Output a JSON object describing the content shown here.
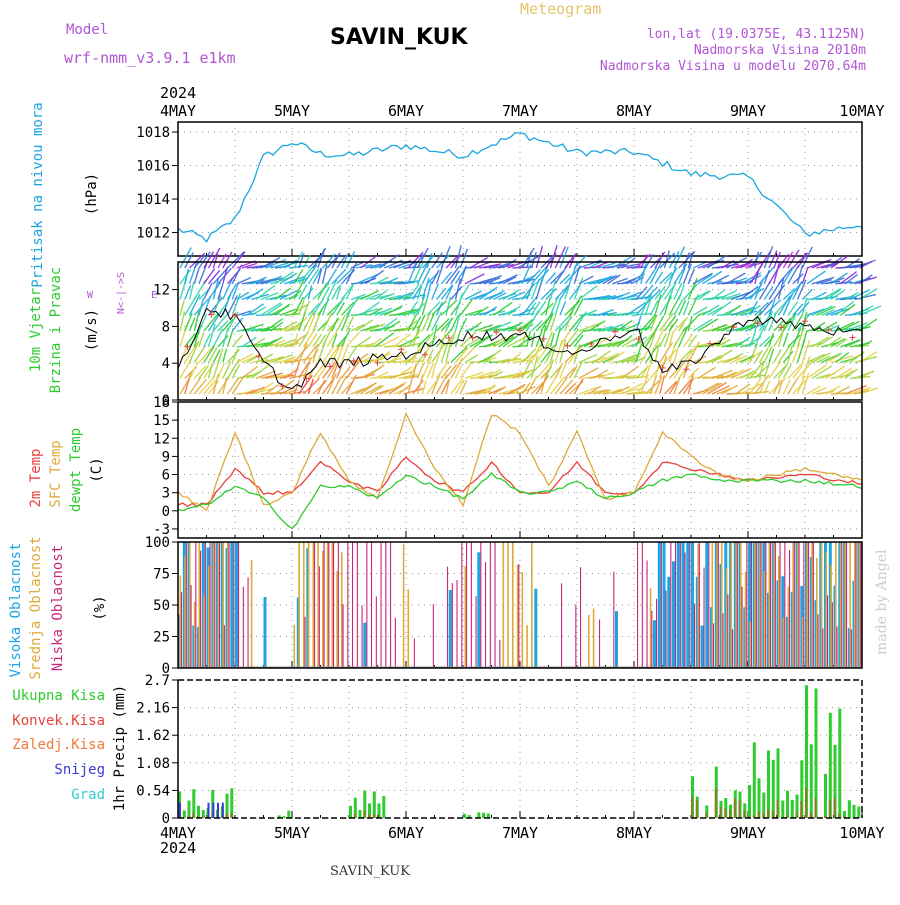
{
  "header": {
    "model_label": "Model",
    "model_name": "wrf-nmm_v3.9.1  e1km",
    "station_title": "SAVIN_KUK",
    "meteogram_label": "Meteogram",
    "lonlat": "lon,lat (19.0375E, 43.1125N)",
    "elevation": "Nadmorska Visina 2010m",
    "model_elevation": "Nadmorska Visina u modelu 2070.64m",
    "year_top": "2024"
  },
  "footer": {
    "year_bottom": "2024",
    "station_bottom": "SAVIN_KUK",
    "credit": "made by Angel"
  },
  "axis": {
    "dates": [
      "4MAY",
      "5MAY",
      "6MAY",
      "7MAY",
      "8MAY",
      "9MAY",
      "10MAY"
    ]
  },
  "colors": {
    "pressure": "#1aa6e0",
    "temp2m": "#e8413b",
    "sfc_temp": "#e0a93a",
    "dewpt": "#2ecc2e",
    "cloud_high": "#1aa6e0",
    "cloud_mid": "#e0a93a",
    "cloud_low": "#c8287a",
    "precip_total": "#2ecc2e",
    "precip_conv": "#e8413b",
    "precip_frz": "#f07b3a",
    "precip_snow": "#3a3ad8",
    "precip_grad": "#33cccc",
    "label_purple": "#b155d6",
    "label_gold": "#e7c36a"
  },
  "panels": {
    "pressure": {
      "label_main": "Pritisak na nivou mora",
      "unit": "(hPa)"
    },
    "wind": {
      "label_main": "10m Vjetar",
      "label_sub": "Brzina i Pravac",
      "unit": "(m/s)",
      "rose_ns": "N<-|->S",
      "rose_w": "W",
      "rose_e": "E"
    },
    "temp": {
      "label_1": "2m Temp",
      "label_2": "SFC Temp",
      "label_3": "dewpt Temp",
      "unit": "(C)"
    },
    "cloud": {
      "label_1": "Visoka Oblacnost",
      "label_2": "Srednja Oblacnost",
      "label_3": "Niska Oblacnost",
      "unit": "(%)"
    },
    "precip": {
      "label_1": "Ukupna Kisa",
      "label_2": "Konvek.Kisa",
      "label_3": "Zaledj.Kisa",
      "label_4": "Snijeg",
      "label_5": "Grad",
      "unit": "1hr Precip (mm)"
    }
  },
  "chart_data": [
    {
      "type": "line",
      "name": "pressure",
      "x_range": [
        "2024-05-04 00",
        "2024-05-10 00"
      ],
      "ylim": [
        1010.6,
        1018.6
      ],
      "yticks": [
        "1012",
        "1014",
        "1016",
        "1018"
      ],
      "grid": true,
      "x_hours": [
        0,
        6,
        12,
        18,
        24,
        30,
        36,
        48,
        60,
        72,
        84,
        96,
        108,
        120,
        132,
        144
      ],
      "values": [
        1012.2,
        1011.6,
        1012.8,
        1016.5,
        1017.4,
        1016.7,
        1016.6,
        1017.2,
        1016.6,
        1017.9,
        1016.8,
        1016.8,
        1015.5,
        1015.3,
        1011.9,
        1012.5
      ]
    },
    {
      "type": "line",
      "name": "wind_speed",
      "ylim": [
        0,
        15
      ],
      "yticks": [
        "0",
        "4",
        "8",
        "12"
      ],
      "grid": true,
      "x_hours": [
        0,
        6,
        12,
        18,
        24,
        30,
        36,
        48,
        60,
        72,
        84,
        96,
        102,
        108,
        120,
        132,
        144
      ],
      "values": [
        3,
        10,
        9,
        4,
        1,
        4,
        4,
        5,
        7,
        7,
        5,
        8,
        3,
        4,
        9,
        8,
        7
      ]
    },
    {
      "type": "line",
      "name": "temperature",
      "ylim": [
        -4.5,
        18
      ],
      "yticks": [
        "-3",
        "0",
        "3",
        "6",
        "9",
        "12",
        "15",
        "18"
      ],
      "grid": true,
      "x_hours": [
        0,
        6,
        12,
        18,
        24,
        30,
        36,
        42,
        48,
        54,
        60,
        66,
        72,
        78,
        84,
        90,
        96,
        102,
        108,
        114,
        120,
        132,
        144
      ],
      "series": [
        {
          "name": "2m Temp",
          "values": [
            1,
            1,
            7,
            3,
            3,
            8,
            5,
            3,
            9,
            5,
            3,
            8,
            3,
            3,
            8,
            3,
            3,
            8,
            7,
            6,
            5,
            6,
            4.5
          ]
        },
        {
          "name": "SFC Temp",
          "values": [
            3,
            0,
            13,
            1,
            3,
            13,
            5,
            2,
            16,
            7,
            1,
            16,
            13,
            4,
            13,
            2,
            3,
            13,
            9,
            6,
            5,
            7,
            5
          ]
        },
        {
          "name": "dewpt Temp",
          "values": [
            0,
            1,
            4,
            2,
            -3,
            4,
            4,
            2,
            6,
            4,
            2,
            6,
            3,
            3,
            5,
            2,
            3,
            5,
            6,
            5,
            5,
            5,
            4
          ]
        }
      ]
    },
    {
      "type": "bar",
      "name": "cloud_cover",
      "ylim": [
        0,
        100
      ],
      "yticks": [
        "0",
        "25",
        "50",
        "75",
        "100"
      ],
      "grid": true,
      "series": [
        {
          "name": "Visoka Oblacnost",
          "active_hours": [
            [
              0,
              12
            ],
            [
              100,
              144
            ]
          ]
        },
        {
          "name": "Srednja Oblacnost",
          "active_hours": [
            [
              0,
              10
            ],
            [
              24,
              34
            ],
            [
              68,
              74
            ],
            [
              112,
              144
            ]
          ]
        },
        {
          "name": "Niska Oblacnost",
          "active_hours": [
            [
              0,
              14
            ],
            [
              28,
              44
            ],
            [
              56,
              66
            ],
            [
              96,
              144
            ]
          ]
        }
      ]
    },
    {
      "type": "bar",
      "name": "precipitation",
      "ylim": [
        0,
        2.7
      ],
      "yticks": [
        "0",
        "0.54",
        "1.08",
        "1.62",
        "2.16",
        "2.7"
      ],
      "grid": true,
      "series": [
        {
          "name": "Ukupna Kisa",
          "peak": 2.6,
          "peak_day": "9MAY"
        },
        {
          "name": "Konvek.Kisa",
          "peak": 1.1,
          "peak_day": "8MAY"
        }
      ]
    }
  ]
}
